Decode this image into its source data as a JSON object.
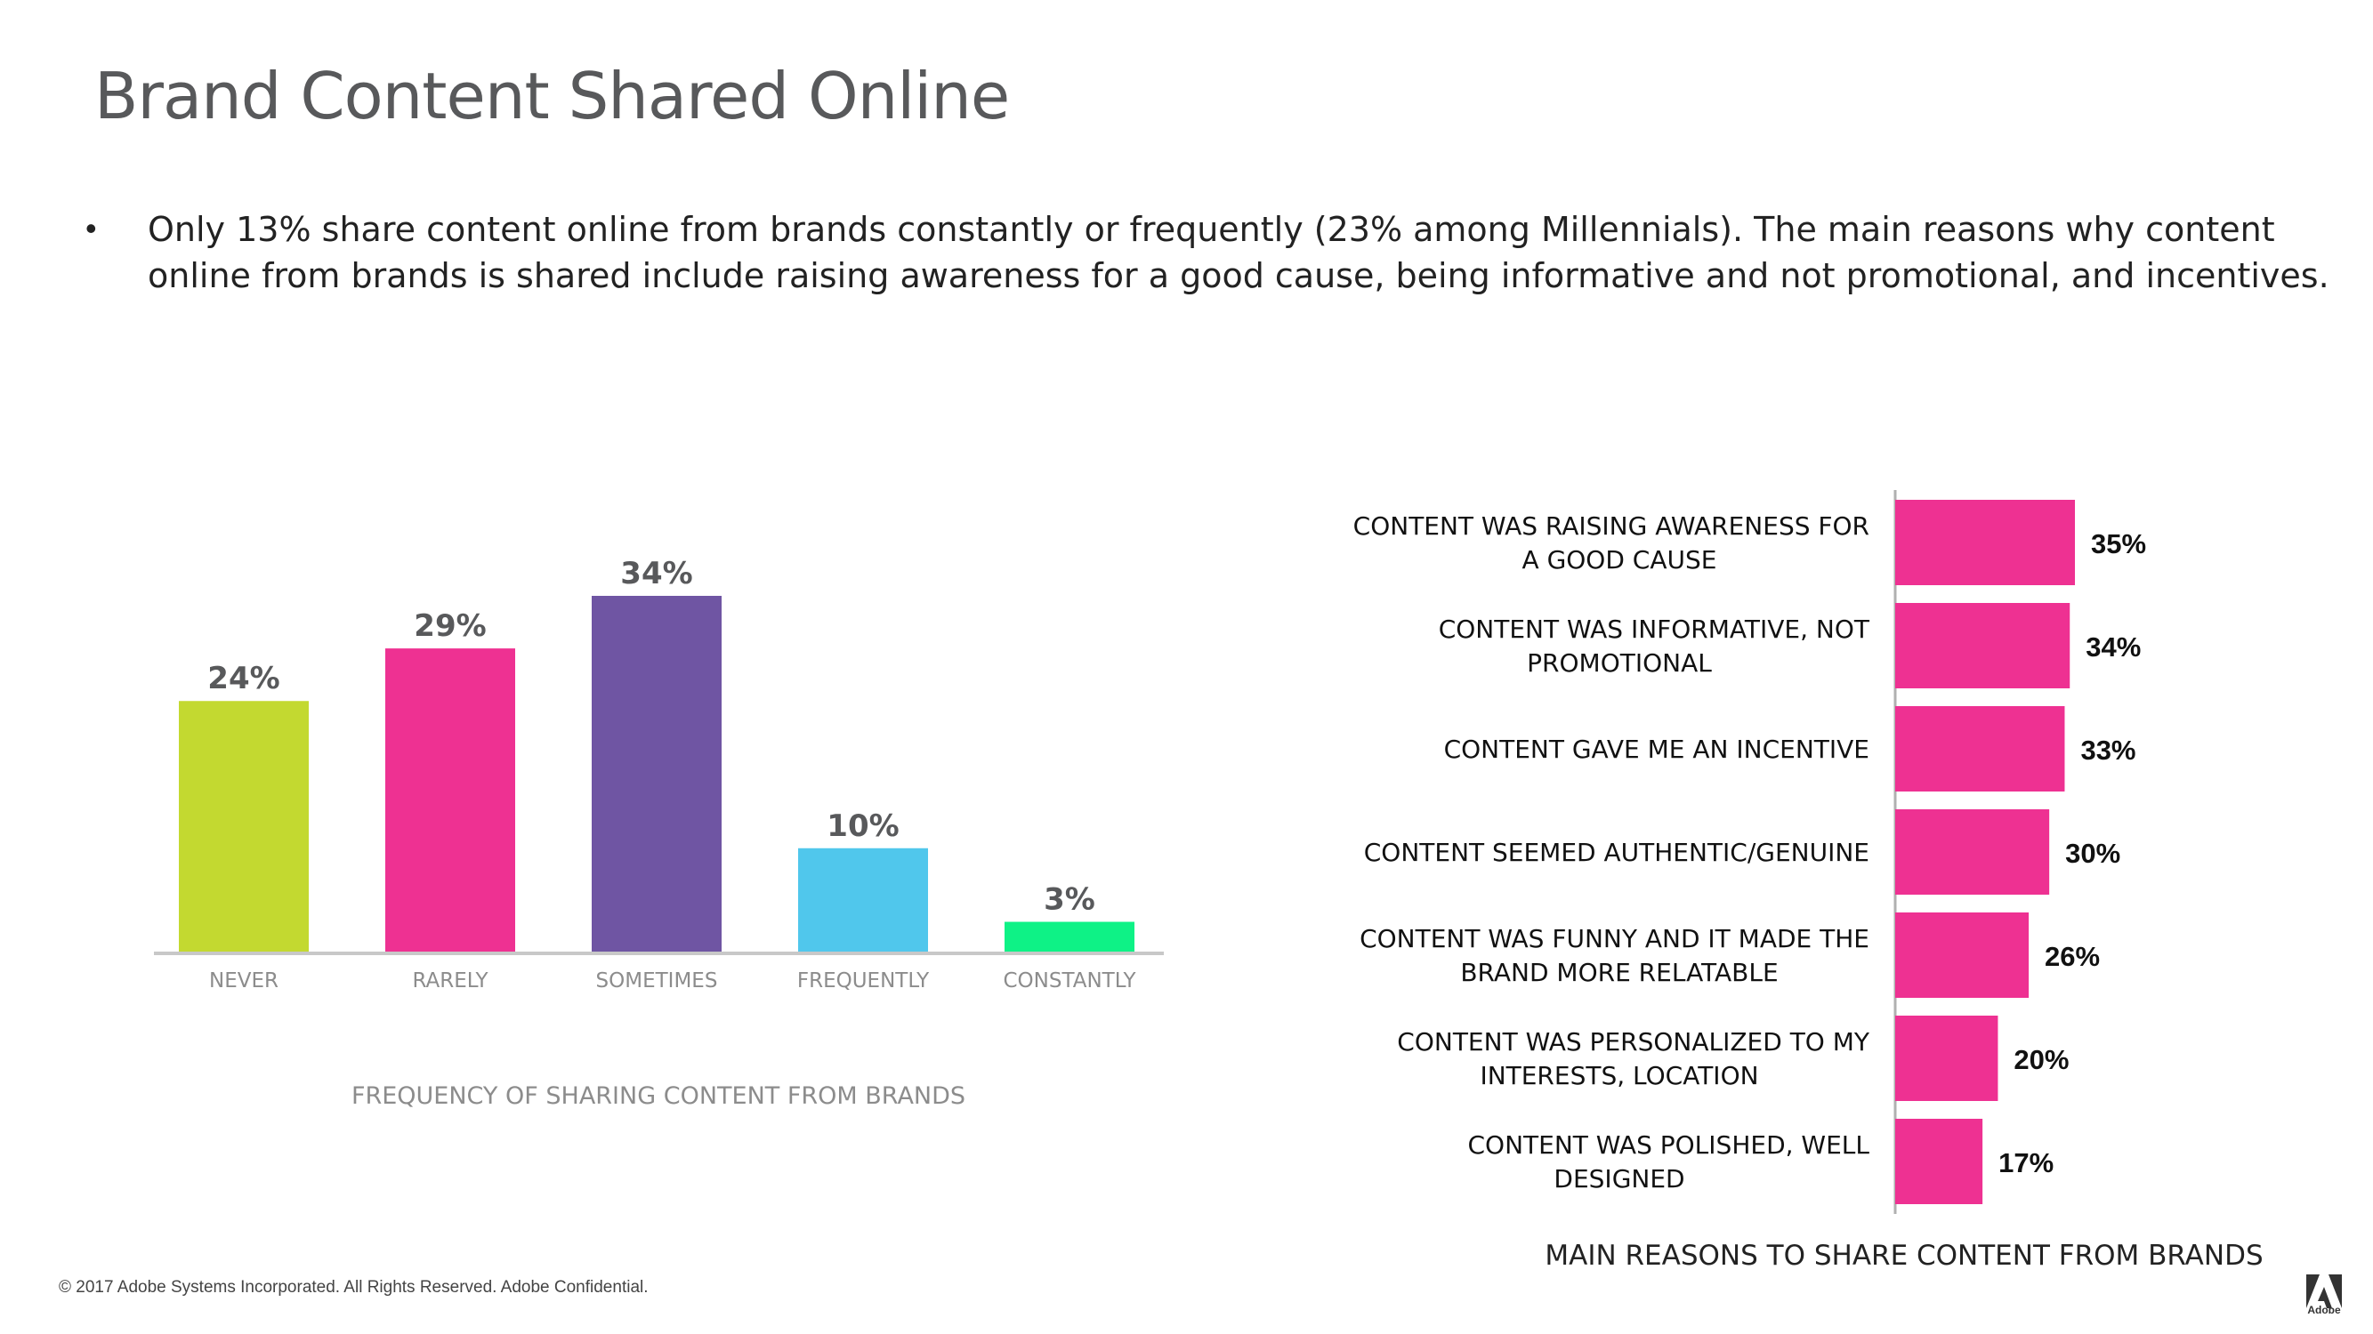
{
  "page": {
    "title": "Brand Content Shared Online",
    "bullet": "Only 13% share content online from brands constantly or frequently (23% among Millennials). The main reasons why content online from brands is shared include raising awareness for a good cause, being informative and not promotional, and incentives.",
    "footer": "© 2017 Adobe Systems Incorporated.  All Rights Reserved.  Adobe Confidential.",
    "logo_text": "Adobe"
  },
  "chart_data": [
    {
      "type": "bar",
      "orientation": "vertical",
      "title": "FREQUENCY OF SHARING CONTENT FROM BRANDS",
      "categories": [
        "NEVER",
        "RARELY",
        "SOMETIMES",
        "FREQUENTLY",
        "CONSTANTLY"
      ],
      "values": [
        24,
        29,
        34,
        10,
        3
      ],
      "value_labels": [
        "24%",
        "29%",
        "34%",
        "10%",
        "3%"
      ],
      "colors": [
        "#c3d930",
        "#ee3192",
        "#6f55a3",
        "#50c7ec",
        "#0ef286"
      ],
      "ylim": [
        0,
        34
      ],
      "grid": false,
      "xlabel": "",
      "ylabel": ""
    },
    {
      "type": "bar",
      "orientation": "horizontal",
      "title": "MAIN REASONS TO SHARE CONTENT FROM BRANDS",
      "categories": [
        [
          "CONTENT WAS RAISING AWARENESS FOR",
          "A GOOD CAUSE"
        ],
        [
          "CONTENT WAS INFORMATIVE, NOT",
          "PROMOTIONAL"
        ],
        [
          "CONTENT GAVE ME AN INCENTIVE"
        ],
        [
          "CONTENT SEEMED AUTHENTIC/GENUINE"
        ],
        [
          "CONTENT WAS FUNNY AND IT MADE THE",
          "BRAND MORE RELATABLE"
        ],
        [
          "CONTENT WAS PERSONALIZED TO MY",
          "INTERESTS, LOCATION"
        ],
        [
          "CONTENT WAS POLISHED, WELL",
          "DESIGNED"
        ]
      ],
      "values": [
        35,
        34,
        33,
        30,
        26,
        20,
        17
      ],
      "value_labels": [
        "35%",
        "34%",
        "33%",
        "30%",
        "26%",
        "20%",
        "17%"
      ],
      "color": "#ee3192",
      "xlim": [
        0,
        35
      ],
      "grid": false,
      "xlabel": "",
      "ylabel": ""
    }
  ]
}
